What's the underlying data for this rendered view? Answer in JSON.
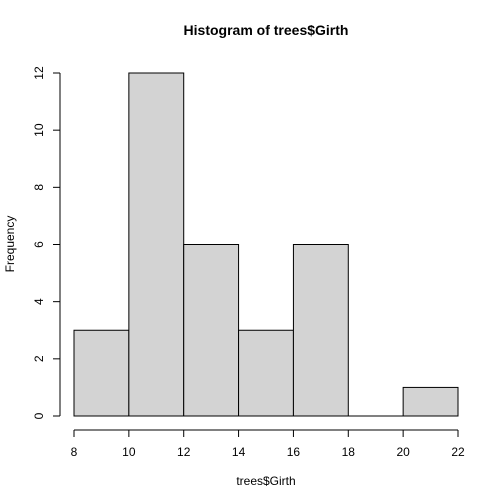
{
  "chart_data": {
    "type": "bar",
    "title": "Histogram of trees$Girth",
    "xlabel": "trees$Girth",
    "ylabel": "Frequency",
    "bins": [
      {
        "from": 8,
        "to": 10,
        "count": 3
      },
      {
        "from": 10,
        "to": 12,
        "count": 12
      },
      {
        "from": 12,
        "to": 14,
        "count": 6
      },
      {
        "from": 14,
        "to": 16,
        "count": 3
      },
      {
        "from": 16,
        "to": 18,
        "count": 6
      },
      {
        "from": 18,
        "to": 20,
        "count": 0
      },
      {
        "from": 20,
        "to": 22,
        "count": 1
      }
    ],
    "xlim": [
      8,
      22
    ],
    "ylim": [
      0,
      12
    ],
    "xticks": [
      8,
      10,
      12,
      14,
      16,
      18,
      20,
      22
    ],
    "yticks": [
      0,
      2,
      4,
      6,
      8,
      10,
      12
    ],
    "bar_color": "#d3d3d3",
    "grid": false
  }
}
